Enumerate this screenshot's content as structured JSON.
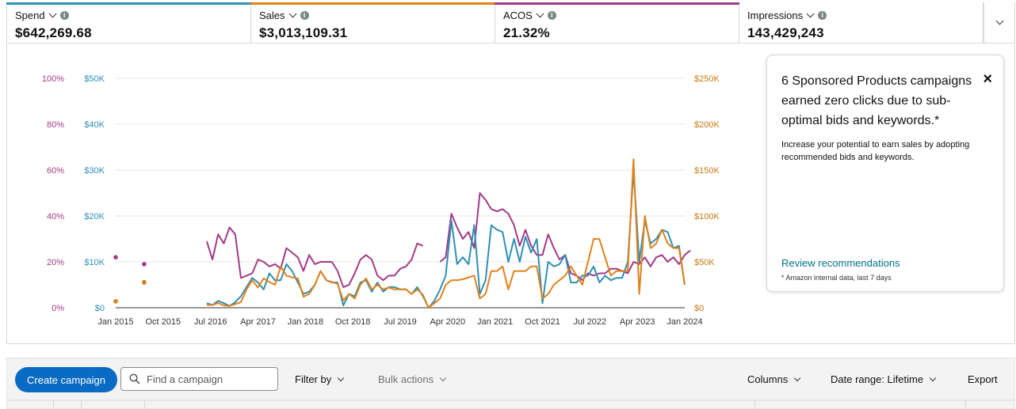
{
  "metrics": [
    {
      "title": "Spend",
      "value": "$642,269.68",
      "color": "#2f8fb5"
    },
    {
      "title": "Sales",
      "value": "$3,013,109.31",
      "color": "#e0821b"
    },
    {
      "title": "ACOS",
      "value": "21.32%",
      "color": "#a23b87"
    },
    {
      "title": "Impressions",
      "value": "143,429,243",
      "color": ""
    }
  ],
  "chart_data": {
    "type": "line",
    "x_tick_labels": [
      "Jan 2015",
      "Oct 2015",
      "Jul 2016",
      "Apr 2017",
      "Jan 2018",
      "Oct 2018",
      "Jul 2019",
      "Apr 2020",
      "Jan 2021",
      "Oct 2021",
      "Jul 2022",
      "Apr 2023",
      "Jan 2024"
    ],
    "axes": {
      "acos": {
        "ticks": [
          "0%",
          "20%",
          "40%",
          "60%",
          "80%",
          "100%"
        ],
        "range": [
          0,
          100
        ],
        "color": "#a23b87"
      },
      "spend": {
        "ticks": [
          "$0",
          "$10K",
          "$20K",
          "$30K",
          "$40K",
          "$50K"
        ],
        "range": [
          0,
          50000
        ],
        "color": "#2f8fb5"
      },
      "sales": {
        "ticks": [
          "$0",
          "$50K",
          "$100K",
          "$150K",
          "$200K",
          "$250K"
        ],
        "range": [
          0,
          250000
        ],
        "color": "#c77a12"
      }
    },
    "grid": true,
    "series": [
      {
        "key": "acos",
        "color": "#a23b87",
        "isolated": [
          {
            "x": 0,
            "y": 22
          },
          {
            "x": 5,
            "y": 19
          }
        ],
        "segments": [
          [
            [
              16,
              29
            ],
            [
              17,
              21
            ],
            [
              18,
              32
            ],
            [
              19,
              28
            ],
            [
              20,
              35
            ],
            [
              21,
              32
            ],
            [
              22,
              13
            ],
            [
              23,
              14
            ],
            [
              24,
              15
            ],
            [
              25,
              21
            ],
            [
              26,
              20
            ],
            [
              27,
              18
            ],
            [
              28,
              19
            ],
            [
              29,
              17
            ],
            [
              30,
              26
            ],
            [
              31,
              24
            ],
            [
              32,
              22
            ],
            [
              33,
              16
            ],
            [
              34,
              23
            ],
            [
              35,
              19
            ],
            [
              36,
              20
            ],
            [
              37,
              20
            ],
            [
              38,
              20
            ],
            [
              39,
              16
            ],
            [
              40,
              9
            ],
            [
              41,
              10
            ],
            [
              42,
              15
            ],
            [
              43,
              21
            ],
            [
              44,
              23
            ],
            [
              45,
              21
            ],
            [
              46,
              14
            ],
            [
              47,
              12
            ],
            [
              48,
              14
            ],
            [
              49,
              14
            ],
            [
              50,
              17
            ],
            [
              51,
              18
            ],
            [
              52,
              21
            ],
            [
              53,
              28
            ],
            [
              54,
              27
            ]
          ],
          [
            [
              57,
              20
            ],
            [
              58,
              22
            ],
            [
              59,
              41
            ],
            [
              60,
              35
            ],
            [
              61,
              30
            ],
            [
              62,
              33
            ],
            [
              63,
              26
            ],
            [
              64,
              50
            ],
            [
              65,
              47
            ],
            [
              66,
              43
            ],
            [
              67,
              42
            ],
            [
              68,
              43
            ],
            [
              69,
              41
            ],
            [
              70,
              36
            ],
            [
              71,
              27
            ],
            [
              72,
              34
            ],
            [
              73,
              27
            ],
            [
              74,
              23
            ],
            [
              75,
              23
            ],
            [
              76,
              32
            ],
            [
              77,
              26
            ],
            [
              78,
              21
            ],
            [
              79,
              23
            ],
            [
              80,
              15
            ],
            [
              81,
              14
            ],
            [
              82,
              12
            ],
            [
              83,
              15
            ],
            [
              84,
              14
            ],
            [
              85,
              15
            ],
            [
              86,
              15
            ],
            [
              87,
              17
            ],
            [
              88,
              17
            ],
            [
              89,
              16
            ],
            [
              90,
              15
            ],
            [
              91,
              20
            ],
            [
              92,
              19
            ],
            [
              93,
              22
            ],
            [
              94,
              18
            ],
            [
              95,
              22
            ],
            [
              96,
              23
            ],
            [
              97,
              20
            ],
            [
              98,
              22
            ],
            [
              99,
              19
            ],
            [
              100,
              23
            ],
            [
              101,
              25
            ]
          ]
        ]
      },
      {
        "key": "spend",
        "color": "#2f8fb5",
        "isolated": [
          {
            "x": 0,
            "y": 1400
          },
          {
            "x": 5,
            "y": 5500
          }
        ],
        "segments": [
          [
            [
              16,
              1000
            ],
            [
              17,
              600
            ],
            [
              18,
              1500
            ],
            [
              19,
              1000
            ],
            [
              20,
              400
            ],
            [
              21,
              1200
            ],
            [
              22,
              2500
            ],
            [
              23,
              4500
            ],
            [
              24,
              6500
            ],
            [
              25,
              5500
            ],
            [
              26,
              4000
            ],
            [
              27,
              7500
            ],
            [
              28,
              6000
            ],
            [
              29,
              6000
            ],
            [
              30,
              9500
            ],
            [
              31,
              8000
            ],
            [
              32,
              5500
            ],
            [
              33,
              3000
            ],
            [
              34,
              3500
            ],
            [
              35,
              5000
            ],
            [
              36,
              8000
            ],
            [
              37,
              6000
            ],
            [
              38,
              5500
            ],
            [
              39,
              5500
            ],
            [
              40,
              500
            ],
            [
              41,
              3000
            ],
            [
              42,
              2500
            ],
            [
              43,
              5500
            ],
            [
              44,
              6000
            ],
            [
              45,
              3500
            ],
            [
              46,
              5500
            ],
            [
              47,
              3500
            ],
            [
              48,
              4500
            ],
            [
              49,
              4500
            ],
            [
              50,
              4000
            ],
            [
              51,
              4000
            ],
            [
              52,
              3000
            ],
            [
              53,
              4500
            ],
            [
              54,
              2500
            ],
            [
              55,
              0
            ],
            [
              56,
              1500
            ],
            [
              57,
              4000
            ],
            [
              58,
              7000
            ],
            [
              59,
              19000
            ],
            [
              60,
              9500
            ],
            [
              61,
              11000
            ],
            [
              62,
              9500
            ],
            [
              63,
              18000
            ],
            [
              64,
              3000
            ],
            [
              65,
              6000
            ],
            [
              66,
              18000
            ],
            [
              67,
              17000
            ],
            [
              68,
              16500
            ],
            [
              69,
              10000
            ],
            [
              70,
              15000
            ],
            [
              71,
              10000
            ],
            [
              72,
              15500
            ],
            [
              73,
              12000
            ],
            [
              74,
              15000
            ],
            [
              75,
              1000
            ],
            [
              76,
              10000
            ],
            [
              77,
              9000
            ],
            [
              78,
              9500
            ],
            [
              79,
              11500
            ],
            [
              80,
              5500
            ],
            [
              81,
              5500
            ],
            [
              82,
              7000
            ],
            [
              83,
              7000
            ],
            [
              84,
              9000
            ],
            [
              85,
              5500
            ],
            [
              86,
              7000
            ],
            [
              87,
              6000
            ],
            [
              88,
              6500
            ],
            [
              89,
              6500
            ],
            [
              90,
              10000
            ],
            [
              91,
              30000
            ],
            [
              92,
              10000
            ],
            [
              93,
              19000
            ],
            [
              94,
              14000
            ],
            [
              95,
              15000
            ],
            [
              96,
              17000
            ],
            [
              97,
              16500
            ],
            [
              98,
              13000
            ],
            [
              99,
              13500
            ],
            [
              100,
              5000
            ]
          ]
        ]
      },
      {
        "key": "sales",
        "color": "#e0821b",
        "isolated": [
          {
            "x": 0,
            "y": 7000
          },
          {
            "x": 5,
            "y": 28000
          }
        ],
        "segments": [
          [
            [
              16,
              3000
            ],
            [
              17,
              3000
            ],
            [
              18,
              5000
            ],
            [
              19,
              2500
            ],
            [
              20,
              2000
            ],
            [
              21,
              4000
            ],
            [
              22,
              6000
            ],
            [
              23,
              20000
            ],
            [
              24,
              30000
            ],
            [
              25,
              22000
            ],
            [
              26,
              32000
            ],
            [
              27,
              28000
            ],
            [
              28,
              25000
            ],
            [
              29,
              45000
            ],
            [
              30,
              35000
            ],
            [
              31,
              33000
            ],
            [
              32,
              32000
            ],
            [
              33,
              12000
            ],
            [
              34,
              15000
            ],
            [
              35,
              25000
            ],
            [
              36,
              40000
            ],
            [
              37,
              30000
            ],
            [
              38,
              28000
            ],
            [
              39,
              26000
            ],
            [
              40,
              8000
            ],
            [
              41,
              15000
            ],
            [
              42,
              10000
            ],
            [
              43,
              25000
            ],
            [
              44,
              32000
            ],
            [
              45,
              20000
            ],
            [
              46,
              25000
            ],
            [
              47,
              20000
            ],
            [
              48,
              22000
            ],
            [
              49,
              20000
            ],
            [
              50,
              20000
            ],
            [
              51,
              20000
            ],
            [
              52,
              15000
            ],
            [
              53,
              20000
            ],
            [
              54,
              14000
            ],
            [
              55,
              0
            ],
            [
              56,
              5000
            ],
            [
              57,
              10000
            ],
            [
              58,
              25000
            ],
            [
              59,
              30000
            ],
            [
              60,
              30000
            ],
            [
              61,
              31000
            ],
            [
              62,
              33000
            ],
            [
              63,
              35000
            ],
            [
              64,
              10000
            ],
            [
              65,
              15000
            ],
            [
              66,
              40000
            ],
            [
              67,
              40000
            ],
            [
              68,
              45000
            ],
            [
              69,
              20000
            ],
            [
              70,
              40000
            ],
            [
              71,
              40000
            ],
            [
              72,
              40000
            ],
            [
              73,
              45000
            ],
            [
              74,
              45000
            ],
            [
              75,
              10000
            ],
            [
              76,
              15000
            ],
            [
              77,
              25000
            ],
            [
              78,
              30000
            ],
            [
              79,
              35000
            ],
            [
              80,
              45000
            ],
            [
              81,
              35000
            ],
            [
              82,
              25000
            ],
            [
              83,
              50000
            ],
            [
              84,
              75000
            ],
            [
              85,
              75000
            ],
            [
              86,
              55000
            ],
            [
              87,
              35000
            ],
            [
              88,
              40000
            ],
            [
              89,
              40000
            ],
            [
              90,
              40000
            ],
            [
              91,
              162000
            ],
            [
              92,
              15000
            ],
            [
              93,
              100000
            ],
            [
              94,
              65000
            ],
            [
              95,
              70000
            ],
            [
              96,
              85000
            ],
            [
              97,
              70000
            ],
            [
              98,
              65000
            ],
            [
              99,
              65000
            ],
            [
              100,
              25000
            ]
          ]
        ]
      }
    ]
  },
  "recommendation": {
    "title": "6 Sponsored Products campaigns earned zero clicks due to sub-optimal bids and keywords.*",
    "body": "Increase your potential to earn sales by adopting recommended bids and keywords.",
    "link": "Review recommendations",
    "footnote": "* Amazon internal data, last 7 days",
    "close": "×"
  },
  "toolbar": {
    "create": "Create campaign",
    "search_placeholder": "Find a campaign",
    "filter": "Filter by",
    "bulk": "Bulk actions",
    "columns": "Columns",
    "date_range": "Date range: Lifetime",
    "export": "Export"
  }
}
